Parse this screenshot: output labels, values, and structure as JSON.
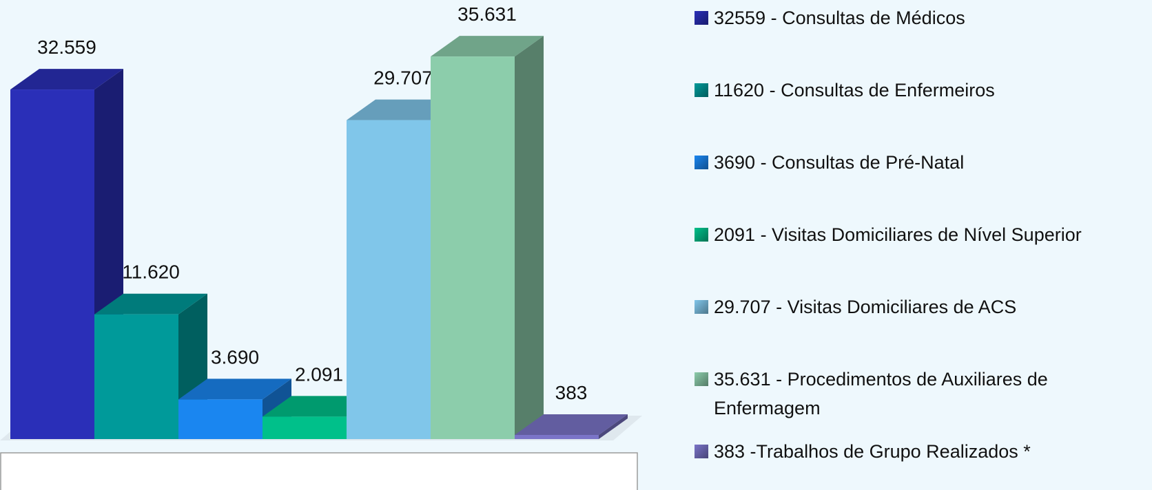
{
  "chart_data": {
    "type": "bar3d",
    "categories": [
      "32559 - Consultas de Médicos",
      "11620 - Consultas de Enfermeiros",
      "3690 - Consultas de Pré-Natal",
      "2091 - Visitas Domiciliares de Nível Superior",
      "29.707 - Visitas Domiciliares de ACS",
      "35.631 - Procedimentos de Auxiliares de Enfermagem",
      "383 -Trabalhos de Grupo Realizados *"
    ],
    "values": [
      32559,
      11620,
      3690,
      2091,
      29707,
      35631,
      383
    ],
    "value_labels": [
      "32.559",
      "11.620",
      "3.690",
      "2.091",
      "29.707",
      "35.631",
      "383"
    ],
    "colors": [
      "#2a2fb8",
      "#009a9a",
      "#1a86f0",
      "#00c08a",
      "#80c6ea",
      "#8ccdab",
      "#7a74c8"
    ],
    "ylim": [
      0,
      40000
    ]
  }
}
